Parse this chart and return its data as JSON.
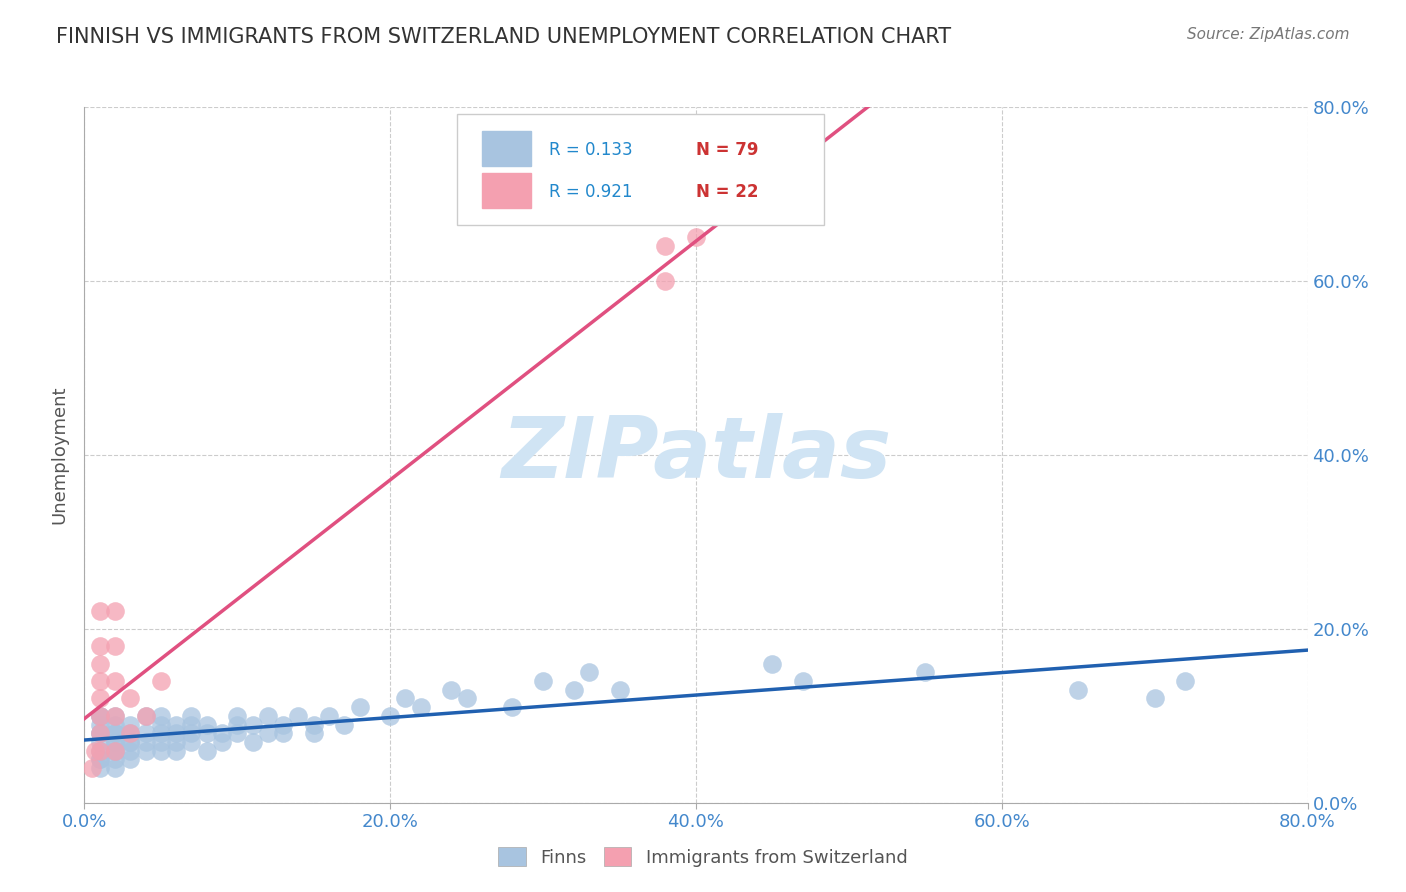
{
  "title": "FINNISH VS IMMIGRANTS FROM SWITZERLAND UNEMPLOYMENT CORRELATION CHART",
  "source": "Source: ZipAtlas.com",
  "ylabel": "Unemployment",
  "xlim": [
    0.0,
    0.8
  ],
  "ylim": [
    0.0,
    0.8
  ],
  "xticks": [
    0.0,
    0.2,
    0.4,
    0.6,
    0.8
  ],
  "yticks": [
    0.0,
    0.2,
    0.4,
    0.6,
    0.8
  ],
  "xticklabels": [
    "0.0%",
    "20.0%",
    "40.0%",
    "60.0%",
    "80.0%"
  ],
  "yticklabels": [
    "0.0%",
    "20.0%",
    "40.0%",
    "60.0%",
    "80.0%"
  ],
  "finns_color": "#a8c4e0",
  "swiss_color": "#f4a0b0",
  "finns_line_color": "#2060b0",
  "swiss_line_color": "#e05080",
  "R_finns": 0.133,
  "N_finns": 79,
  "R_swiss": 0.921,
  "N_swiss": 22,
  "background_color": "#ffffff",
  "grid_color": "#cccccc",
  "tick_label_color": "#4488cc",
  "title_color": "#333333",
  "watermark_text": "ZIPatlas",
  "watermark_color": "#d0e4f4",
  "legend_r_color": "#2288cc",
  "legend_n_color": "#cc3333",
  "finns_scatter_x": [
    0.01,
    0.01,
    0.01,
    0.01,
    0.01,
    0.01,
    0.01,
    0.01,
    0.01,
    0.01,
    0.02,
    0.02,
    0.02,
    0.02,
    0.02,
    0.02,
    0.02,
    0.02,
    0.02,
    0.02,
    0.03,
    0.03,
    0.03,
    0.03,
    0.03,
    0.03,
    0.04,
    0.04,
    0.04,
    0.04,
    0.05,
    0.05,
    0.05,
    0.05,
    0.05,
    0.06,
    0.06,
    0.06,
    0.06,
    0.07,
    0.07,
    0.07,
    0.07,
    0.08,
    0.08,
    0.08,
    0.09,
    0.09,
    0.1,
    0.1,
    0.1,
    0.11,
    0.11,
    0.12,
    0.12,
    0.13,
    0.13,
    0.14,
    0.15,
    0.15,
    0.16,
    0.17,
    0.18,
    0.2,
    0.21,
    0.22,
    0.24,
    0.25,
    0.28,
    0.3,
    0.32,
    0.33,
    0.35,
    0.45,
    0.47,
    0.55,
    0.65,
    0.7,
    0.72
  ],
  "finns_scatter_y": [
    0.05,
    0.08,
    0.1,
    0.1,
    0.08,
    0.09,
    0.07,
    0.06,
    0.05,
    0.04,
    0.06,
    0.09,
    0.07,
    0.08,
    0.06,
    0.05,
    0.04,
    0.07,
    0.08,
    0.1,
    0.05,
    0.07,
    0.08,
    0.06,
    0.09,
    0.07,
    0.08,
    0.1,
    0.07,
    0.06,
    0.09,
    0.08,
    0.07,
    0.1,
    0.06,
    0.08,
    0.09,
    0.07,
    0.06,
    0.09,
    0.08,
    0.1,
    0.07,
    0.08,
    0.09,
    0.06,
    0.07,
    0.08,
    0.09,
    0.1,
    0.08,
    0.07,
    0.09,
    0.08,
    0.1,
    0.09,
    0.08,
    0.1,
    0.09,
    0.08,
    0.1,
    0.09,
    0.11,
    0.1,
    0.12,
    0.11,
    0.13,
    0.12,
    0.11,
    0.14,
    0.13,
    0.15,
    0.13,
    0.16,
    0.14,
    0.15,
    0.13,
    0.12,
    0.14
  ],
  "swiss_scatter_x": [
    0.005,
    0.007,
    0.01,
    0.01,
    0.01,
    0.01,
    0.01,
    0.01,
    0.01,
    0.01,
    0.02,
    0.02,
    0.02,
    0.02,
    0.02,
    0.03,
    0.03,
    0.04,
    0.05,
    0.38,
    0.38,
    0.4
  ],
  "swiss_scatter_y": [
    0.04,
    0.06,
    0.06,
    0.08,
    0.1,
    0.12,
    0.14,
    0.16,
    0.18,
    0.22,
    0.06,
    0.1,
    0.14,
    0.18,
    0.22,
    0.08,
    0.12,
    0.1,
    0.14,
    0.6,
    0.64,
    0.65
  ]
}
